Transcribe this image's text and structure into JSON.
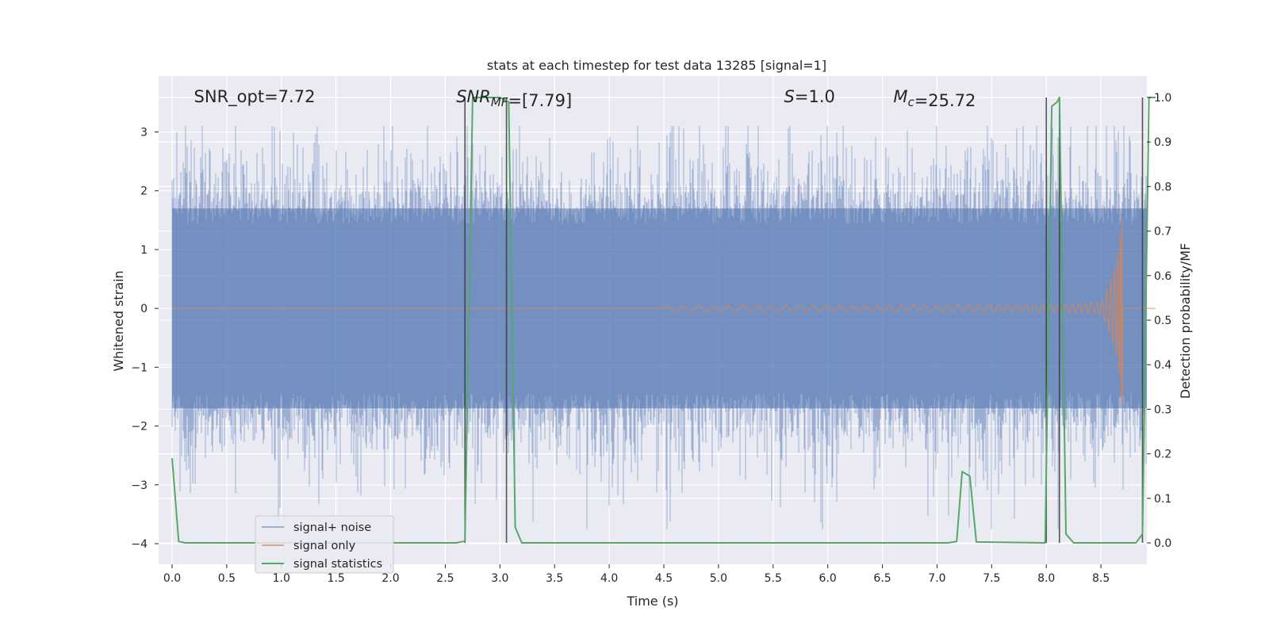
{
  "chart_data": {
    "type": "line",
    "title": "stats at each timestep for test data 13285 [signal=1]",
    "xlabel": "Time (s)",
    "ylabel": "Whitened strain",
    "y2label": "Detection probability/MF",
    "xlim": [
      0.0,
      9.0
    ],
    "ylim": [
      -4.35,
      3.95
    ],
    "y2lim": [
      -0.048,
      1.048
    ],
    "x_ticks": [
      0.0,
      0.5,
      1.0,
      1.5,
      2.0,
      2.5,
      3.0,
      3.5,
      4.0,
      4.5,
      5.0,
      5.5,
      6.0,
      6.5,
      7.0,
      7.5,
      8.0,
      8.5
    ],
    "y_ticks": [
      3,
      2,
      1,
      0,
      -1,
      -2,
      -3,
      -4
    ],
    "y2_ticks": [
      1.0,
      0.9,
      0.8,
      0.7,
      0.6,
      0.5,
      0.4,
      0.3,
      0.2,
      0.1,
      0.0
    ],
    "grid": true,
    "legend_position": "lower-left",
    "annotations": [
      {
        "segments": [
          {
            "text": "SNR_opt=7.72"
          }
        ],
        "x": 0.2,
        "y": 3.6
      },
      {
        "segments": [
          {
            "text": "SNR",
            "italic": true
          },
          {
            "text": "MF",
            "italic": true,
            "sub": true
          },
          {
            "text": "=[7.79]"
          }
        ],
        "x": 2.6,
        "y": 3.6
      },
      {
        "segments": [
          {
            "text": "S",
            "italic": true
          },
          {
            "text": "=1.0"
          }
        ],
        "x": 5.6,
        "y": 3.6
      },
      {
        "segments": [
          {
            "text": "M",
            "italic": true
          },
          {
            "text": "c",
            "italic": true,
            "sub": true
          },
          {
            "text": "=25.72"
          }
        ],
        "x": 6.6,
        "y": 3.6
      }
    ],
    "series": [
      {
        "name": "signal+ noise",
        "axis": "left",
        "color": "#4c72b0",
        "opacity": 0.5,
        "noise_band": {
          "core_half_width": 1.7,
          "peak_range": [
            -3.75,
            3.1
          ],
          "x_range": [
            0.0,
            9.0
          ]
        }
      },
      {
        "name": "signal only",
        "axis": "left",
        "color": "#dd8452",
        "chirp": {
          "t_start": 4.5,
          "t_merge": 8.7,
          "amp_max": 1.65,
          "zero_after": 8.7
        }
      },
      {
        "name": "signal statistics",
        "axis": "right",
        "color": "#55a868",
        "x": [
          0.0,
          0.06,
          0.12,
          2.6,
          2.68,
          2.75,
          2.82,
          2.9,
          3.0,
          3.08,
          3.14,
          3.2,
          7.1,
          7.18,
          7.23,
          7.3,
          7.36,
          7.99,
          8.05,
          8.1,
          8.12,
          8.18,
          8.25,
          8.3,
          8.82,
          8.88,
          8.94,
          9.0
        ],
        "y": [
          0.19,
          0.003,
          0.0,
          0.0,
          0.004,
          1.0,
          1.0,
          1.0,
          1.0,
          0.99,
          0.035,
          0.0,
          0.0,
          0.003,
          0.16,
          0.15,
          0.002,
          0.0,
          0.98,
          0.99,
          1.0,
          0.02,
          0.0,
          0.0,
          0.0,
          0.02,
          1.0,
          1.0
        ]
      }
    ],
    "vlines": [
      {
        "x": 2.68,
        "y2_from": 0.0,
        "y2_to": 1.0
      },
      {
        "x": 3.06,
        "y2_from": 0.0,
        "y2_to": 1.0
      },
      {
        "x": 8.0,
        "y2_from": 0.0,
        "y2_to": 1.0
      },
      {
        "x": 8.12,
        "y2_from": 0.0,
        "y2_to": 1.0
      },
      {
        "x": 8.88,
        "y2_from": 0.0,
        "y2_to": 1.0
      }
    ]
  }
}
